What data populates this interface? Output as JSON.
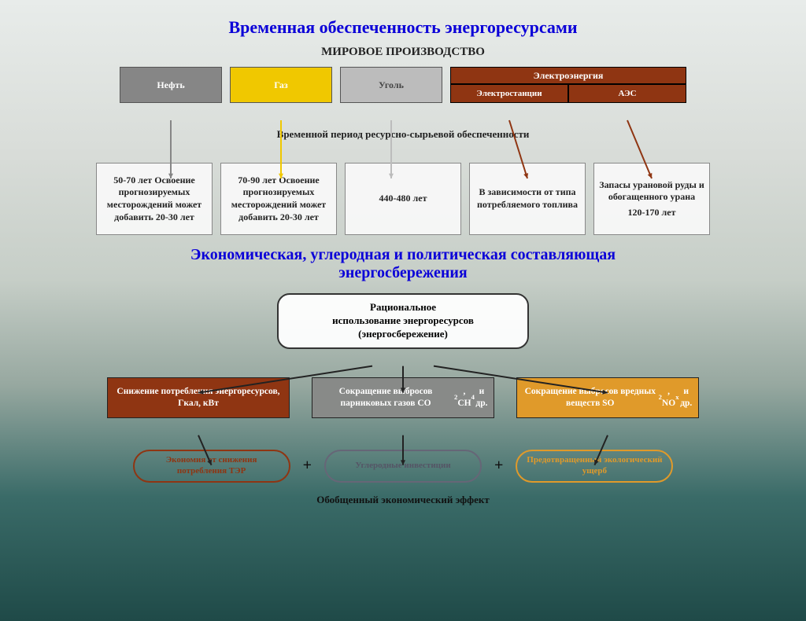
{
  "titles": {
    "main": "Временная обеспеченность энергоресурсами",
    "sub1": "МИРОВОЕ ПРОИЗВОДСТВО",
    "period": "Временной период ресурсно-сырьевой обеспеченности",
    "main2_l1": "Экономическая, углеродная и политическая составляющая",
    "main2_l2": "энергосбережения",
    "bottom": "Обобщенный экономический эффект"
  },
  "resources": {
    "oil": {
      "label": "Нефть",
      "color": "#868686"
    },
    "gas": {
      "label": "Газ",
      "color": "#f0c800"
    },
    "coal": {
      "label": "Уголь",
      "color": "#bcbcbc"
    },
    "electricity": {
      "header": "Электроэнергия",
      "left": "Электростанции",
      "right": "АЭС",
      "color": "#8f3512"
    }
  },
  "desc": {
    "oil": "50-70 лет Освоение прогнозируемых месторождений может добавить 20-30 лет",
    "gas": "70-90 лет Освоение прогнозируемых месторождений может добавить 20-30 лет",
    "coal": "440-480 лет",
    "plant": "В зависимости от типа потребляемого топлива",
    "npp_l1": "Запасы урановой руды и обогащенного урана",
    "npp_l2": "120-170 лет"
  },
  "rational": {
    "l1": "Рациональное",
    "l2": "использование энергоресурсов",
    "l3": "(энергосбережение)"
  },
  "mid": {
    "a": {
      "text": "Снижение потребления энергоресурсов, Гкал, кВт",
      "color": "#8f3512"
    },
    "b": {
      "text_html": "Сокращение выбросов парниковых газов CO<sub>2</sub>, CH<sub>4</sub> и др.",
      "color": "#888a88"
    },
    "c": {
      "text_html": "Сокращение выбросов вредных веществ SO<sub>2</sub>, NO<sub>x</sub> и др.",
      "color": "#e09a2a"
    }
  },
  "ovals": {
    "a": "Экономия от снижения потребления ТЭР",
    "b": "Углеродные инвестиции",
    "c": "Предотвращенный экологический ущерб",
    "plus": "+"
  },
  "arrows": {
    "stroke_width": 2,
    "colors": {
      "oil": "#868686",
      "gas": "#f0c800",
      "coal": "#bcbcbc",
      "brown": "#8f3512",
      "black": "#222"
    }
  },
  "style": {
    "title_color": "#0b00d8",
    "title_fontsize": 22,
    "subtitle_fontsize": 15,
    "desc_fontsize": 12,
    "mid_fontsize": 11.5,
    "oval_fontsize": 11,
    "background_gradient": [
      "#e8ecea",
      "#d8dcd8",
      "#c6cec7",
      "#97a8a0",
      "#3a6b68",
      "#1f4a48"
    ]
  }
}
